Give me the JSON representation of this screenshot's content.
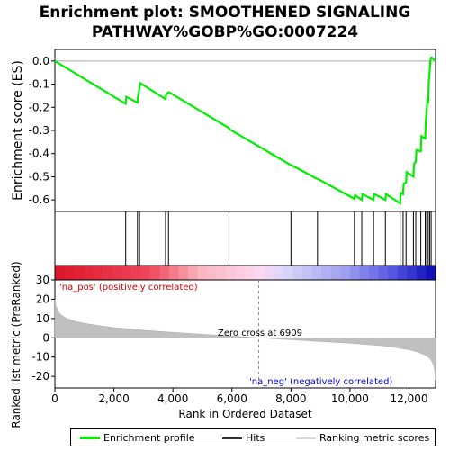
{
  "title_line1": "Enrichment plot: SMOOTHENED SIGNALING",
  "title_line2": "PATHWAY%GOBP%GO:0007224",
  "colors": {
    "enrichment": "#00ee00",
    "hits": "#000000",
    "metric_fill": "#c0c0c0",
    "pos_label": "#cc0000",
    "neg_label": "#0000cc",
    "zero_line": "#888888"
  },
  "legend": {
    "enrichment_profile": "Enrichment profile",
    "hits": "Hits",
    "ranking_metric": "Ranking metric scores"
  },
  "chart_data": [
    {
      "type": "line",
      "name": "enrichment-score",
      "ylabel": "Enrichment score (ES)",
      "xlim": [
        0,
        12900
      ],
      "ylim": [
        -0.65,
        0.05
      ],
      "yticks": [
        0.0,
        -0.1,
        -0.2,
        -0.3,
        -0.4,
        -0.5,
        -0.6
      ],
      "ytick_labels": [
        "0.0",
        "-0.1",
        "-0.2",
        "-0.3",
        "-0.4",
        "-0.5",
        "-0.6"
      ],
      "grid": false,
      "x": [
        0,
        2400,
        2420,
        2800,
        2810,
        2870,
        2890,
        3750,
        3770,
        3850,
        3870,
        5900,
        5920,
        8000,
        8020,
        8900,
        8920,
        10150,
        10170,
        10400,
        10420,
        10800,
        10820,
        11200,
        11220,
        11700,
        11720,
        11800,
        11820,
        11900,
        11920,
        12150,
        12170,
        12230,
        12250,
        12400,
        12420,
        12550,
        12570,
        12600,
        12620,
        12650,
        12670,
        12700,
        12720,
        12750,
        12770,
        12900
      ],
      "y": [
        0.0,
        -0.185,
        -0.155,
        -0.18,
        -0.16,
        -0.115,
        -0.095,
        -0.165,
        -0.145,
        -0.135,
        -0.135,
        -0.29,
        -0.295,
        -0.45,
        -0.45,
        -0.51,
        -0.51,
        -0.595,
        -0.58,
        -0.6,
        -0.575,
        -0.6,
        -0.575,
        -0.6,
        -0.575,
        -0.615,
        -0.57,
        -0.575,
        -0.53,
        -0.525,
        -0.48,
        -0.5,
        -0.445,
        -0.435,
        -0.385,
        -0.39,
        -0.325,
        -0.335,
        -0.255,
        -0.21,
        -0.17,
        -0.175,
        -0.09,
        -0.05,
        0.0,
        0.015,
        0.015,
        0.0
      ]
    },
    {
      "type": "hits",
      "name": "hits",
      "x": [
        2400,
        2800,
        2870,
        3750,
        3850,
        5900,
        8000,
        8900,
        10150,
        10400,
        10800,
        11200,
        11700,
        11800,
        11900,
        12150,
        12230,
        12400,
        12550,
        12600,
        12650,
        12700,
        12750
      ]
    },
    {
      "type": "area",
      "name": "ranked-list-metric",
      "ylabel": "Ranked list metric (PreRanked)",
      "xlabel": "Rank in Ordered Dataset",
      "xlim": [
        0,
        12900
      ],
      "ylim": [
        -26,
        30
      ],
      "xticks": [
        0,
        2000,
        4000,
        6000,
        8000,
        10000,
        12000
      ],
      "xtick_labels": [
        "0",
        "2,000",
        "4,000",
        "6,000",
        "8,000",
        "10,000",
        "12,000"
      ],
      "yticks": [
        30,
        20,
        10,
        0,
        -10,
        -20
      ],
      "ytick_labels": [
        "30",
        "20",
        "10",
        "0",
        "-10",
        "-20"
      ],
      "x": [
        0,
        30,
        100,
        200,
        400,
        700,
        1000,
        1500,
        2000,
        3000,
        4000,
        5000,
        6000,
        6909,
        8000,
        9000,
        10000,
        11000,
        11500,
        12000,
        12300,
        12500,
        12650,
        12750,
        12800,
        12850,
        12880,
        12900
      ],
      "y": [
        20,
        17,
        14,
        12,
        10,
        8.5,
        7.5,
        6.3,
        5.3,
        3.9,
        2.8,
        1.8,
        0.9,
        0.0,
        -1.0,
        -1.9,
        -2.8,
        -4.0,
        -4.9,
        -6.2,
        -7.4,
        -8.6,
        -10.0,
        -11.6,
        -13.0,
        -15.0,
        -18.0,
        -22.0
      ],
      "annotations": {
        "pos": "'na_pos' (positively correlated)",
        "neg": "'na_neg' (negatively correlated)",
        "zero_cross": "Zero cross at 6909"
      },
      "zero_cross": 6909
    }
  ]
}
